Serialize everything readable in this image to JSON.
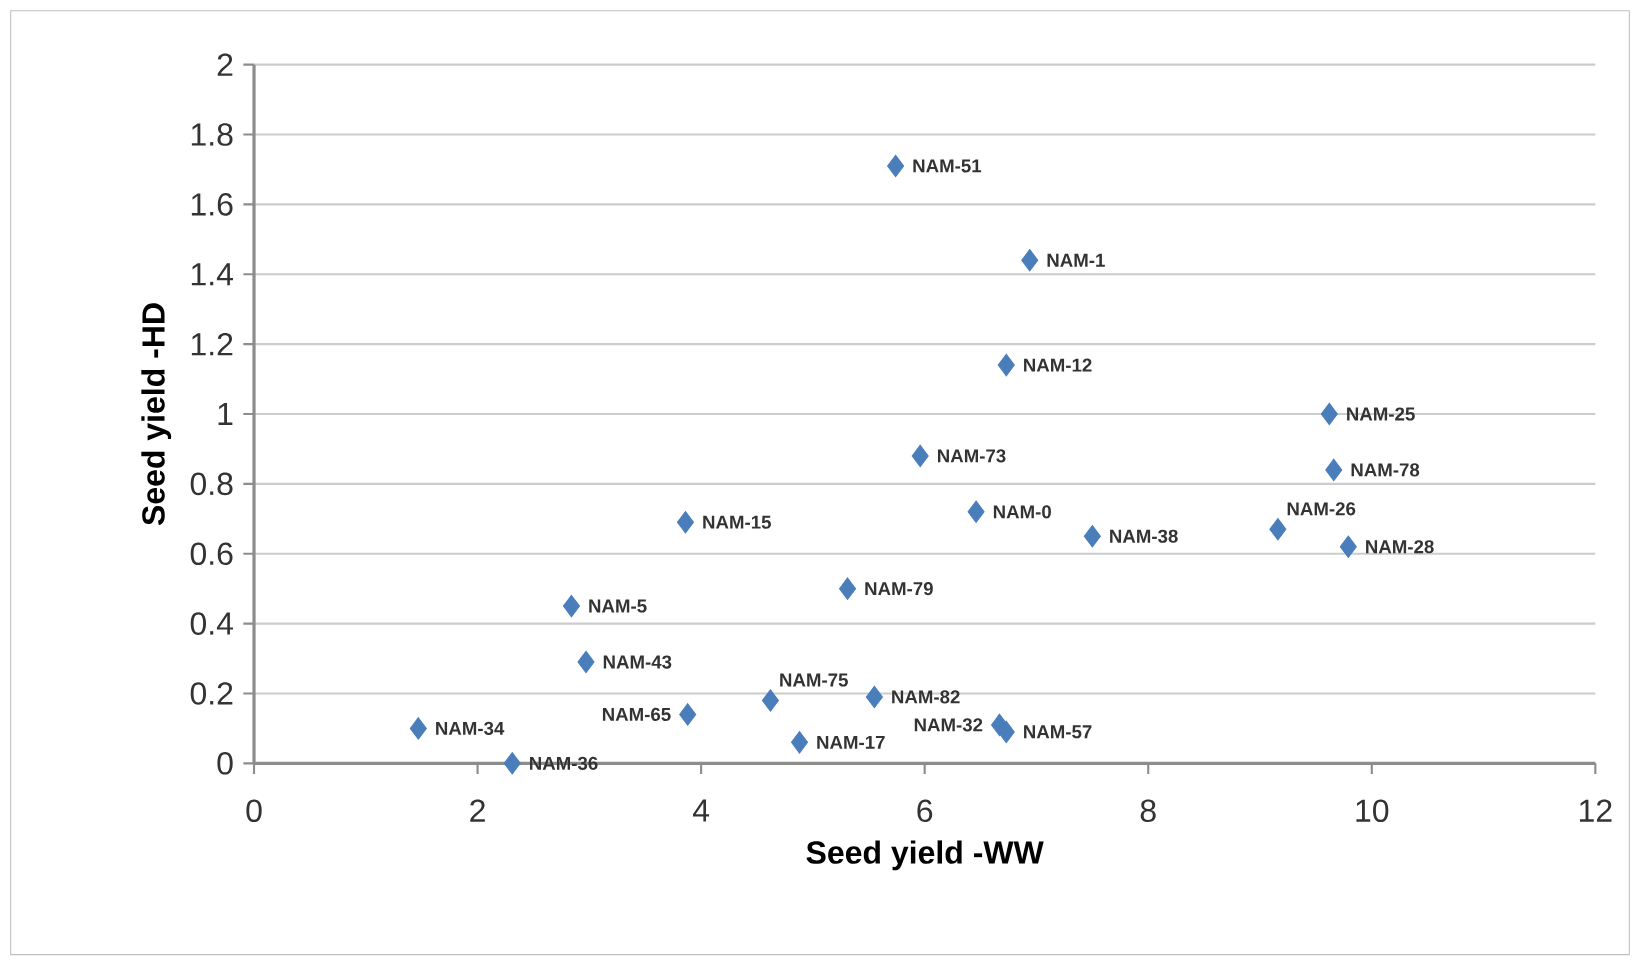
{
  "chart_data": {
    "type": "scatter",
    "xlabel": "Seed yield -WW",
    "ylabel": "Seed yield -HD",
    "xlim": [
      0,
      12
    ],
    "xticks": [
      0,
      2,
      4,
      6,
      8,
      10,
      12
    ],
    "ylim": [
      0,
      2
    ],
    "yticks": [
      0,
      0.2,
      0.4,
      0.6,
      0.8,
      1,
      1.2,
      1.4,
      1.6,
      1.8,
      2
    ],
    "grid": "y",
    "marker": "diamond",
    "series": [
      {
        "color": "#4a7ebb",
        "x": [
          5.74,
          6.94,
          6.73,
          9.62,
          5.96,
          9.66,
          6.46,
          7.5,
          9.16,
          9.79,
          5.31,
          5.55,
          6.67,
          6.73,
          3.86,
          2.84,
          2.97,
          1.47,
          2.31,
          3.88,
          4.62,
          4.88
        ],
        "values": [
          1.71,
          1.44,
          1.14,
          1.0,
          0.88,
          0.84,
          0.72,
          0.65,
          0.67,
          0.62,
          0.5,
          0.19,
          0.11,
          0.09,
          0.69,
          0.45,
          0.29,
          0.1,
          0.0,
          0.14,
          0.18,
          0.06
        ]
      }
    ],
    "annotations": [
      {
        "text": "NAM-51",
        "x": 5.74,
        "y": 1.71
      },
      {
        "text": "NAM-1",
        "x": 6.94,
        "y": 1.44
      },
      {
        "text": "NAM-12",
        "x": 6.73,
        "y": 1.14
      },
      {
        "text": "NAM-25",
        "x": 9.62,
        "y": 1.0
      },
      {
        "text": "NAM-73",
        "x": 5.96,
        "y": 0.88
      },
      {
        "text": "NAM-78",
        "x": 9.66,
        "y": 0.84
      },
      {
        "text": "NAM-0",
        "x": 6.46,
        "y": 0.72
      },
      {
        "text": "NAM-38",
        "x": 7.5,
        "y": 0.65
      },
      {
        "text": "NAM-26",
        "x": 9.16,
        "y": 0.67
      },
      {
        "text": "NAM-28",
        "x": 9.79,
        "y": 0.62
      },
      {
        "text": "NAM-79",
        "x": 5.31,
        "y": 0.5
      },
      {
        "text": "NAM-82",
        "x": 5.55,
        "y": 0.19
      },
      {
        "text": "NAM-32",
        "x": 6.67,
        "y": 0.11
      },
      {
        "text": "NAM-57",
        "x": 6.73,
        "y": 0.09
      },
      {
        "text": "NAM-15",
        "x": 3.86,
        "y": 0.69
      },
      {
        "text": "NAM-5",
        "x": 2.84,
        "y": 0.45
      },
      {
        "text": "NAM-43",
        "x": 2.97,
        "y": 0.29
      },
      {
        "text": "NAM-34",
        "x": 1.47,
        "y": 0.1
      },
      {
        "text": "NAM-36",
        "x": 2.31,
        "y": 0.0
      },
      {
        "text": "NAM-65",
        "x": 3.88,
        "y": 0.14
      },
      {
        "text": "NAM-75",
        "x": 4.62,
        "y": 0.18
      },
      {
        "text": "NAM-17",
        "x": 4.88,
        "y": 0.06
      }
    ]
  }
}
